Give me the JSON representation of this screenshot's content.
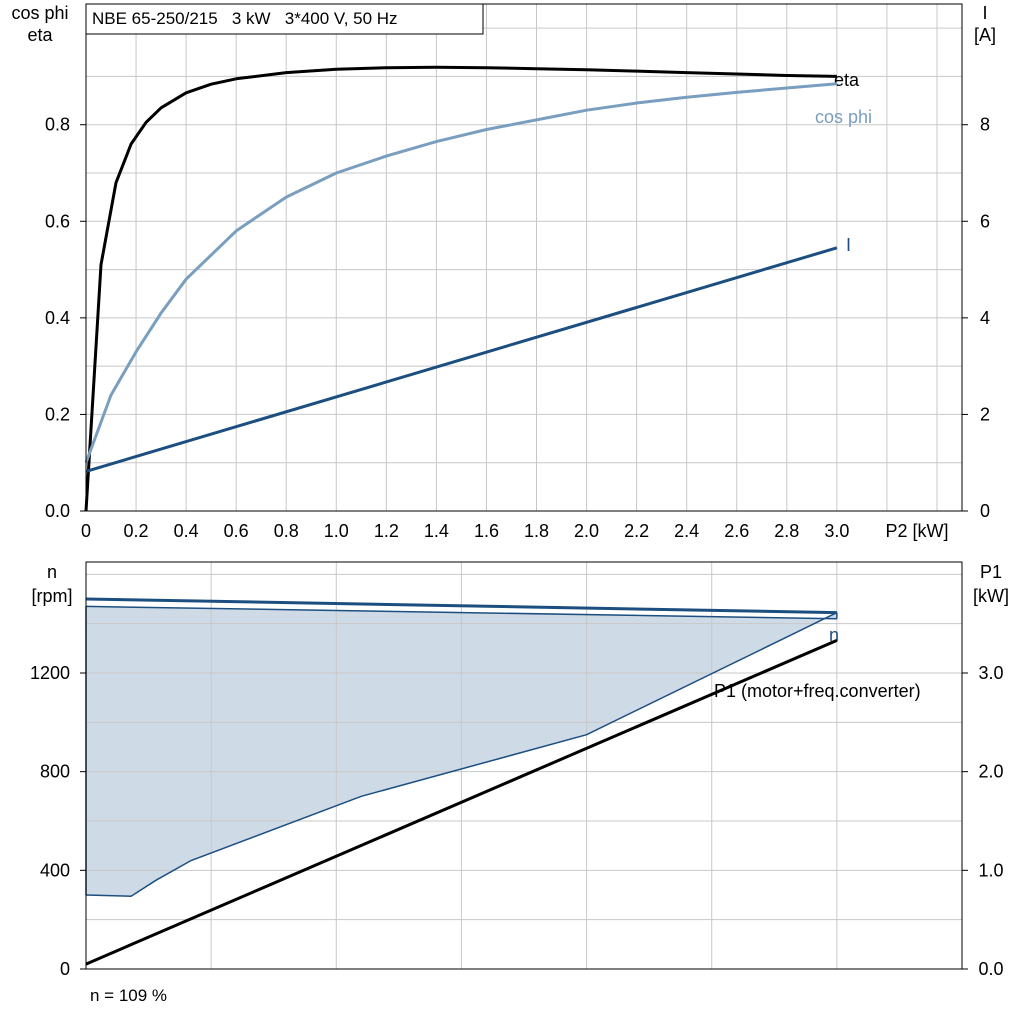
{
  "chart_data": [
    {
      "type": "line",
      "title": "NBE 65-250/215   3 kW   3*400 V, 50 Hz",
      "xlabel": "P2 [kW]",
      "ylabel_left_line1": "cos phi",
      "ylabel_left_line2": "eta",
      "ylabel_right_line1": "I",
      "ylabel_right_line2": "[A]",
      "xlim": [
        0,
        3.5
      ],
      "ylim_left": [
        0,
        1.05
      ],
      "ylim_right": [
        0,
        10.5
      ],
      "x_ticks": [
        "0",
        "0.2",
        "0.4",
        "0.6",
        "0.8",
        "1.0",
        "1.2",
        "1.4",
        "1.6",
        "1.8",
        "2.0",
        "2.2",
        "2.4",
        "2.6",
        "2.8",
        "3.0"
      ],
      "y_left_ticks": [
        "0.0",
        "0.2",
        "0.4",
        "0.6",
        "0.8"
      ],
      "y_right_ticks": [
        "0",
        "2",
        "4",
        "6",
        "8"
      ],
      "grid": true,
      "series": [
        {
          "name": "eta",
          "axis": "left",
          "color": "#000000",
          "x": [
            0,
            0.06,
            0.12,
            0.18,
            0.24,
            0.3,
            0.4,
            0.5,
            0.6,
            0.8,
            1.0,
            1.2,
            1.4,
            1.6,
            1.8,
            2.0,
            2.2,
            2.4,
            2.6,
            2.8,
            3.0
          ],
          "y": [
            0.0,
            0.51,
            0.68,
            0.76,
            0.805,
            0.835,
            0.866,
            0.884,
            0.895,
            0.908,
            0.915,
            0.918,
            0.919,
            0.918,
            0.916,
            0.914,
            0.911,
            0.908,
            0.905,
            0.902,
            0.9
          ]
        },
        {
          "name": "cos phi",
          "axis": "left",
          "color": "#7a9ebf",
          "x": [
            0,
            0.1,
            0.2,
            0.3,
            0.4,
            0.6,
            0.8,
            1.0,
            1.2,
            1.4,
            1.6,
            1.8,
            2.0,
            2.2,
            2.4,
            2.6,
            2.8,
            3.0
          ],
          "y": [
            0.1,
            0.24,
            0.33,
            0.41,
            0.48,
            0.58,
            0.65,
            0.7,
            0.735,
            0.765,
            0.79,
            0.81,
            0.83,
            0.845,
            0.857,
            0.867,
            0.876,
            0.885
          ]
        },
        {
          "name": "I",
          "axis": "right",
          "color": "#1c4f80",
          "x": [
            0,
            3.0
          ],
          "y": [
            0.82,
            5.45
          ]
        }
      ]
    },
    {
      "type": "area",
      "xlim": [
        0,
        3.5
      ],
      "ylabel_left_line1": "n",
      "ylabel_left_line2": "[rpm]",
      "ylabel_right_line1": "P1",
      "ylabel_right_line2": "[kW]",
      "ylim_left": [
        0,
        1650
      ],
      "ylim_right": [
        0,
        4.125
      ],
      "y_left_ticks": [
        "0",
        "400",
        "800",
        "1200"
      ],
      "y_right_ticks": [
        "0.0",
        "1.0",
        "2.0",
        "3.0"
      ],
      "grid": true,
      "operating_range": {
        "color": "#cfdae7",
        "upper": {
          "x": [
            0,
            3.0
          ],
          "y": [
            1470,
            1420
          ]
        },
        "lower": {
          "x": [
            0,
            0.18,
            0.28,
            0.42,
            1.1,
            2.0,
            3.0
          ],
          "y": [
            300,
            295,
            360,
            440,
            700,
            950,
            1445
          ]
        }
      },
      "series": [
        {
          "name": "n",
          "axis": "left",
          "color": "#1c4f80",
          "x": [
            0,
            3.0
          ],
          "y": [
            1500,
            1445
          ]
        },
        {
          "name": "P1 (motor+freq.converter)",
          "axis": "right",
          "color": "#000000",
          "x": [
            0,
            3.0
          ],
          "y": [
            0.05,
            3.33
          ]
        }
      ],
      "footer": "n = 109 %"
    }
  ]
}
